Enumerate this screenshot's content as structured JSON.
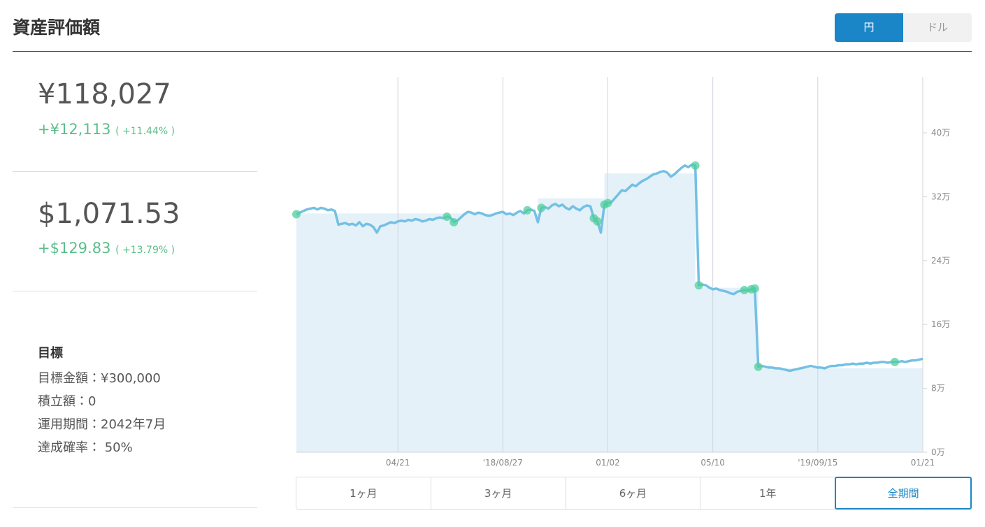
{
  "header": {
    "title": "資産評価額",
    "currency_toggle": [
      "円",
      "ドル"
    ],
    "currency_selected": 0
  },
  "summary": {
    "yen": {
      "value": "¥118,027",
      "change": "+¥12,113",
      "change_pct": "( +11.44% )"
    },
    "usd": {
      "value": "$1,071.53",
      "change": "+$129.83",
      "change_pct": "( +13.79% )"
    }
  },
  "goal": {
    "heading": "目標",
    "lines": [
      "目標金額：¥300,000",
      "積立額：0",
      "運用期間：2042年7月",
      "達成確率： 50%"
    ]
  },
  "chart_data": {
    "type": "line",
    "series": [
      {
        "color": "#74c0e4",
        "values": [
          29.8,
          30.0,
          30.2,
          30.4,
          30.5,
          30.6,
          30.4,
          30.6,
          30.5,
          30.3,
          30.4,
          30.2,
          28.5,
          28.6,
          28.7,
          28.5,
          28.6,
          28.4,
          28.8,
          28.3,
          28.6,
          28.5,
          28.2,
          27.5,
          28.3,
          28.4,
          28.6,
          28.8,
          28.7,
          28.9,
          29.0,
          28.9,
          29.1,
          29.0,
          29.2,
          29.1,
          28.9,
          29.0,
          29.2,
          29.1,
          29.3,
          29.4,
          29.3,
          29.5,
          29.4,
          28.8,
          29.0,
          29.4,
          29.8,
          30.1,
          30.0,
          29.8,
          30.0,
          29.9,
          29.7,
          29.6,
          29.7,
          29.9,
          30.0,
          30.1,
          29.8,
          29.9,
          29.7,
          30.0,
          30.2,
          29.9,
          30.3,
          30.4,
          30.2,
          28.8,
          30.6,
          30.7,
          30.5,
          30.9,
          31.1,
          30.8,
          31.0,
          30.6,
          30.4,
          30.8,
          30.5,
          30.3,
          30.7,
          30.9,
          30.8,
          29.3,
          28.9,
          27.5,
          31.0,
          31.2,
          31.3,
          31.8,
          32.3,
          32.8,
          32.7,
          33.1,
          33.5,
          33.3,
          33.7,
          34.0,
          34.2,
          34.5,
          34.8,
          34.9,
          35.1,
          35.2,
          35.0,
          34.5,
          34.8,
          35.2,
          35.6,
          35.9,
          35.7,
          36.0,
          35.9,
          20.9,
          21.0,
          20.9,
          20.6,
          20.4,
          20.5,
          20.3,
          20.2,
          20.1,
          19.9,
          19.8,
          20.1,
          20.2,
          20.3,
          20.2,
          20.4,
          20.5,
          10.7,
          10.8,
          10.7,
          10.6,
          10.6,
          10.5,
          10.5,
          10.4,
          10.3,
          10.2,
          10.3,
          10.4,
          10.5,
          10.6,
          10.7,
          10.8,
          10.7,
          10.6,
          10.6,
          10.5,
          10.7,
          10.8,
          10.8,
          10.9,
          10.9,
          11.0,
          11.0,
          11.1,
          11.0,
          11.1,
          11.1,
          11.2,
          11.1,
          11.2,
          11.2,
          11.3,
          11.3,
          11.2,
          11.3,
          11.3,
          11.3,
          11.4,
          11.3,
          11.4,
          11.5,
          11.5,
          11.6,
          11.7
        ]
      }
    ],
    "area_color": "#e4f1f9",
    "area_steps": [
      {
        "start": 0,
        "end": 69,
        "value": 29.9
      },
      {
        "start": 69,
        "end": 88,
        "value": 31.8
      },
      {
        "start": 88,
        "end": 114,
        "value": 34.9
      },
      {
        "start": 114,
        "end": 132,
        "value": 20.6
      },
      {
        "start": 132,
        "end": 179,
        "value": 10.5
      }
    ],
    "markers": {
      "color": "#4fcf9b",
      "x": [
        0,
        43,
        45,
        66,
        70,
        85,
        86,
        88,
        89,
        114,
        115,
        128,
        130,
        131,
        132,
        171
      ]
    },
    "xlim": [
      0,
      179
    ],
    "xticks": [
      {
        "value": 29,
        "label": "04/21"
      },
      {
        "value": 59,
        "label": "'18/08/27"
      },
      {
        "value": 89,
        "label": "01/02"
      },
      {
        "value": 119,
        "label": "05/10"
      },
      {
        "value": 149,
        "label": "'19/09/15"
      },
      {
        "value": 179,
        "label": "01/21"
      }
    ],
    "ylim": [
      0,
      47
    ],
    "yticks": [
      {
        "value": 0,
        "label": "0万"
      },
      {
        "value": 8,
        "label": "8万"
      },
      {
        "value": 16,
        "label": "16万"
      },
      {
        "value": 24,
        "label": "24万"
      },
      {
        "value": 32,
        "label": "32万"
      },
      {
        "value": 40,
        "label": "40万"
      }
    ],
    "grid": "x"
  },
  "periods": {
    "options": [
      "1ヶ月",
      "3ヶ月",
      "6ヶ月",
      "1年",
      "全期間"
    ],
    "selected": 4
  }
}
